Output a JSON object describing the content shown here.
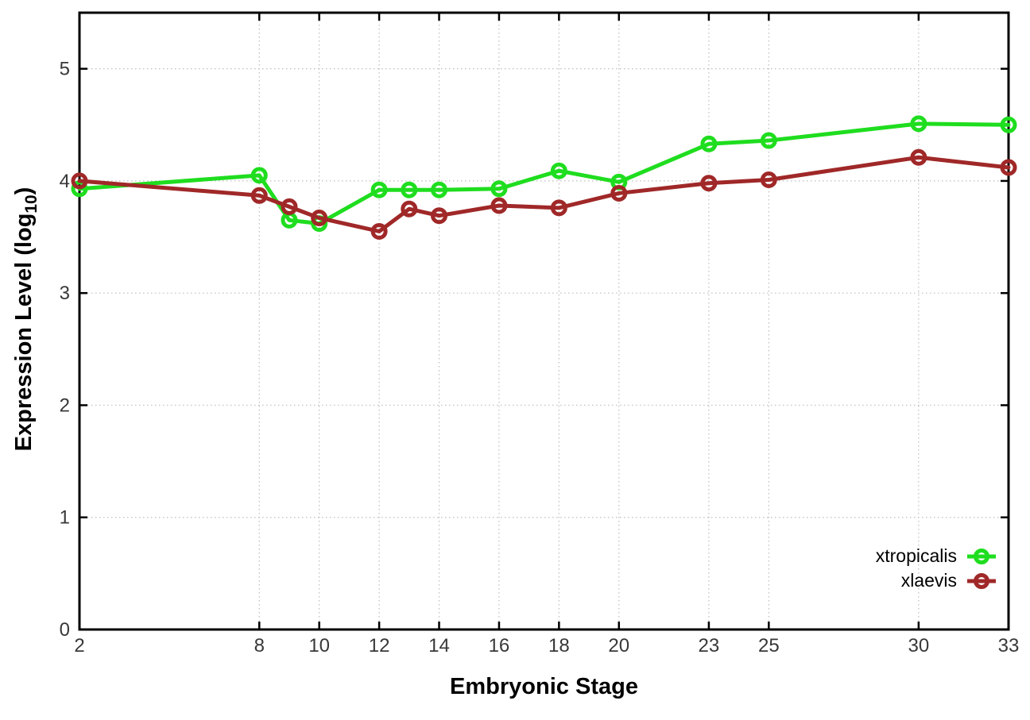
{
  "chart_data": {
    "type": "line",
    "title": "",
    "xlabel": "Embryonic Stage",
    "ylabel": {
      "prefix": "Expression Level (log",
      "sub": "10",
      "suffix": ")"
    },
    "x_ticks": [
      "2",
      "8",
      "10",
      "12",
      "14",
      "16",
      "18",
      "20",
      "23",
      "25",
      "30",
      "33"
    ],
    "y_ticks": [
      "0",
      "1",
      "2",
      "3",
      "4",
      "5"
    ],
    "xlim": [
      2,
      33
    ],
    "ylim": [
      0,
      5.5
    ],
    "grid": true,
    "legend_position": "bottom-right-inside",
    "x": [
      2,
      8,
      9,
      10,
      12,
      13,
      14,
      16,
      18,
      20,
      23,
      25,
      30,
      33
    ],
    "series": [
      {
        "name": "xtropicalis",
        "color": "#1fdd1f",
        "values": [
          3.93,
          4.05,
          3.65,
          3.62,
          3.92,
          3.92,
          3.92,
          3.93,
          4.09,
          3.99,
          4.33,
          4.36,
          4.51,
          4.5
        ]
      },
      {
        "name": "xlaevis",
        "color": "#a02828",
        "values": [
          4.0,
          3.87,
          3.77,
          3.67,
          3.55,
          3.75,
          3.69,
          3.78,
          3.76,
          3.89,
          3.98,
          4.01,
          4.21,
          4.12
        ]
      }
    ],
    "colors": {
      "grid": "#bdbdbd",
      "axis": "#000000",
      "tick_label": "#383838",
      "background": "#ffffff"
    }
  }
}
